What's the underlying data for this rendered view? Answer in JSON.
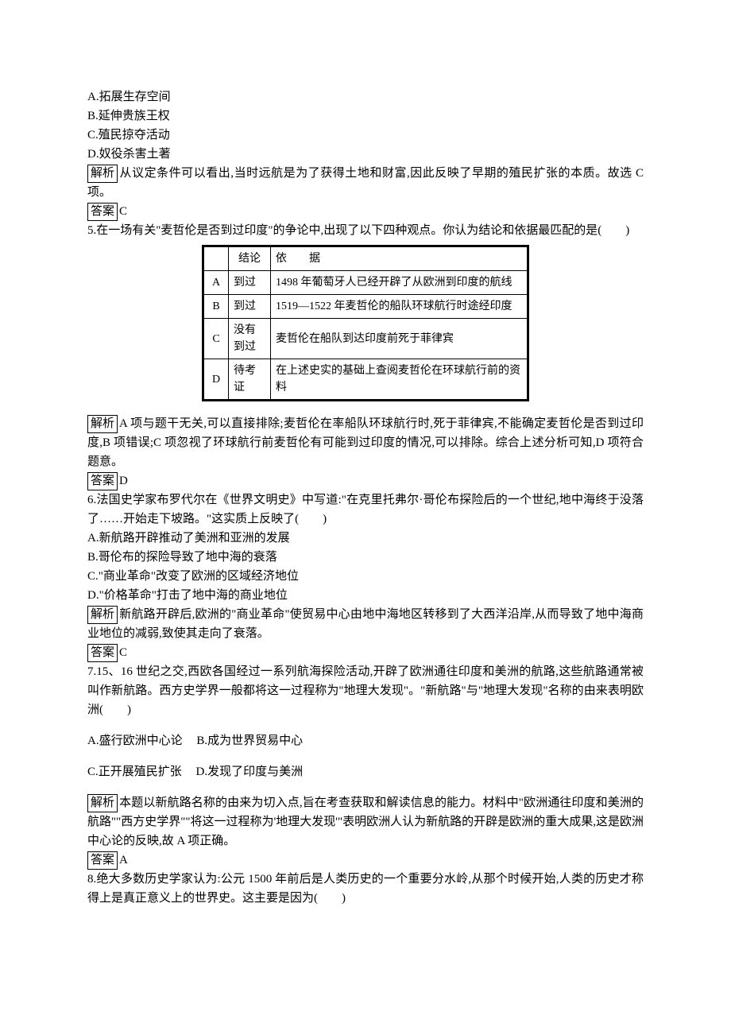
{
  "labels": {
    "analysis": "解析",
    "answer": "答案"
  },
  "q4_tail": {
    "optA": "A.拓展生存空间",
    "optB": "B.延伸贵族王权",
    "optC": "C.殖民掠夺活动",
    "optD": "D.奴役杀害土著",
    "analysis": "从议定条件可以看出,当时远航是为了获得土地和财富,因此反映了早期的殖民扩张的本质。故选 C 项。",
    "answer": "C"
  },
  "q5": {
    "stem": "5.在一场有关\"麦哲伦是否到过印度\"的争论中,出现了以下四种观点。你认为结论和依据最匹配的是(　　)",
    "headers": {
      "blank": "",
      "conclusion": "结论",
      "basis": "依　　据"
    },
    "rows": [
      {
        "label": "A",
        "conclusion": "到过",
        "basis": "1498 年葡萄牙人已经开辟了从欧洲到印度的航线"
      },
      {
        "label": "B",
        "conclusion": "到过",
        "basis": "1519—1522 年麦哲伦的船队环球航行时途经印度"
      },
      {
        "label": "C",
        "conclusion": "没有到过",
        "basis": "麦哲伦在船队到达印度前死于菲律宾"
      },
      {
        "label": "D",
        "conclusion": "待考证",
        "basis": "在上述史实的基础上查阅麦哲伦在环球航行前的资料"
      }
    ],
    "analysis": "A 项与题干无关,可以直接排除;麦哲伦在率船队环球航行时,死于菲律宾,不能确定麦哲伦是否到过印度,B 项错误;C 项忽视了环球航行前麦哲伦有可能到过印度的情况,可以排除。综合上述分析可知,D 项符合题意。",
    "answer": "D"
  },
  "q6": {
    "stem": "6.法国史学家布罗代尔在《世界文明史》中写道:\"在克里托弗尔·哥伦布探险后的一个世纪,地中海终于没落了……开始走下坡路。\"这实质上反映了(　　)",
    "optA": "A.新航路开辟推动了美洲和亚洲的发展",
    "optB": "B.哥伦布的探险导致了地中海的衰落",
    "optC": "C.\"商业革命\"改变了欧洲的区域经济地位",
    "optD": "D.\"价格革命\"打击了地中海的商业地位",
    "analysis": "新航路开辟后,欧洲的\"商业革命\"使贸易中心由地中海地区转移到了大西洋沿岸,从而导致了地中海商业地位的减弱,致使其走向了衰落。",
    "answer": "C"
  },
  "q7": {
    "stem": "7.15、16 世纪之交,西欧各国经过一系列航海探险活动,开辟了欧洲通往印度和美洲的航路,这些航路通常被叫作新航路。西方史学界一般都将这一过程称为\"地理大发现\"。\"新航路\"与\"地理大发现\"名称的由来表明欧洲(　　)",
    "optA": "A.盛行欧洲中心论",
    "optB": "B.成为世界贸易中心",
    "optC": "C.正开展殖民扩张",
    "optD": "D.发现了印度与美洲",
    "analysis": "本题以新航路名称的由来为切入点,旨在考查获取和解读信息的能力。材料中\"欧洲通往印度和美洲的航路\"\"西方史学界\"\"将这一过程称为'地理大发现'\"表明欧洲人认为新航路的开辟是欧洲的重大成果,这是欧洲中心论的反映,故 A 项正确。",
    "answer": "A"
  },
  "q8": {
    "stem": "8.绝大多数历史学家认为:公元 1500 年前后是人类历史的一个重要分水岭,从那个时候开始,人类的历史才称得上是真正意义上的世界史。这主要是因为(　　)"
  }
}
